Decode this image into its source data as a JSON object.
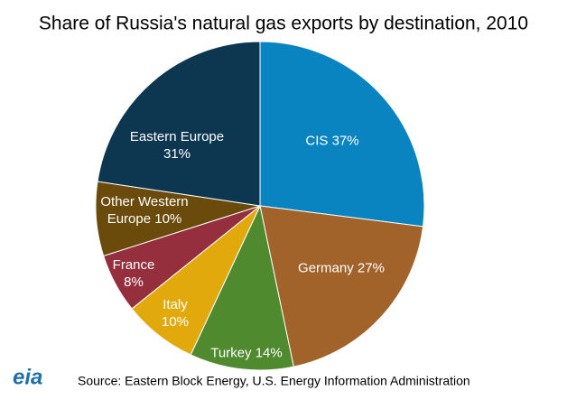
{
  "chart_data": {
    "type": "pie",
    "title": "Share of Russia's natural gas exports by destination, 2010",
    "categories": [
      "CIS",
      "Germany",
      "Turkey",
      "Italy",
      "France",
      "Other Western Europe",
      "Eastern Europe"
    ],
    "values": [
      37,
      27,
      14,
      10,
      8,
      10,
      31
    ],
    "value_labels": [
      "37%",
      "27%",
      "14%",
      "10%",
      "8%",
      "10%",
      "31%"
    ],
    "colors": [
      "#0a84c1",
      "#a2632a",
      "#4f8a2f",
      "#e2a90c",
      "#952f3d",
      "#6a4b0b",
      "#0d3651"
    ],
    "source": "Source: Eastern Block Energy, U.S. Energy Information Administration",
    "logo": "eia"
  }
}
